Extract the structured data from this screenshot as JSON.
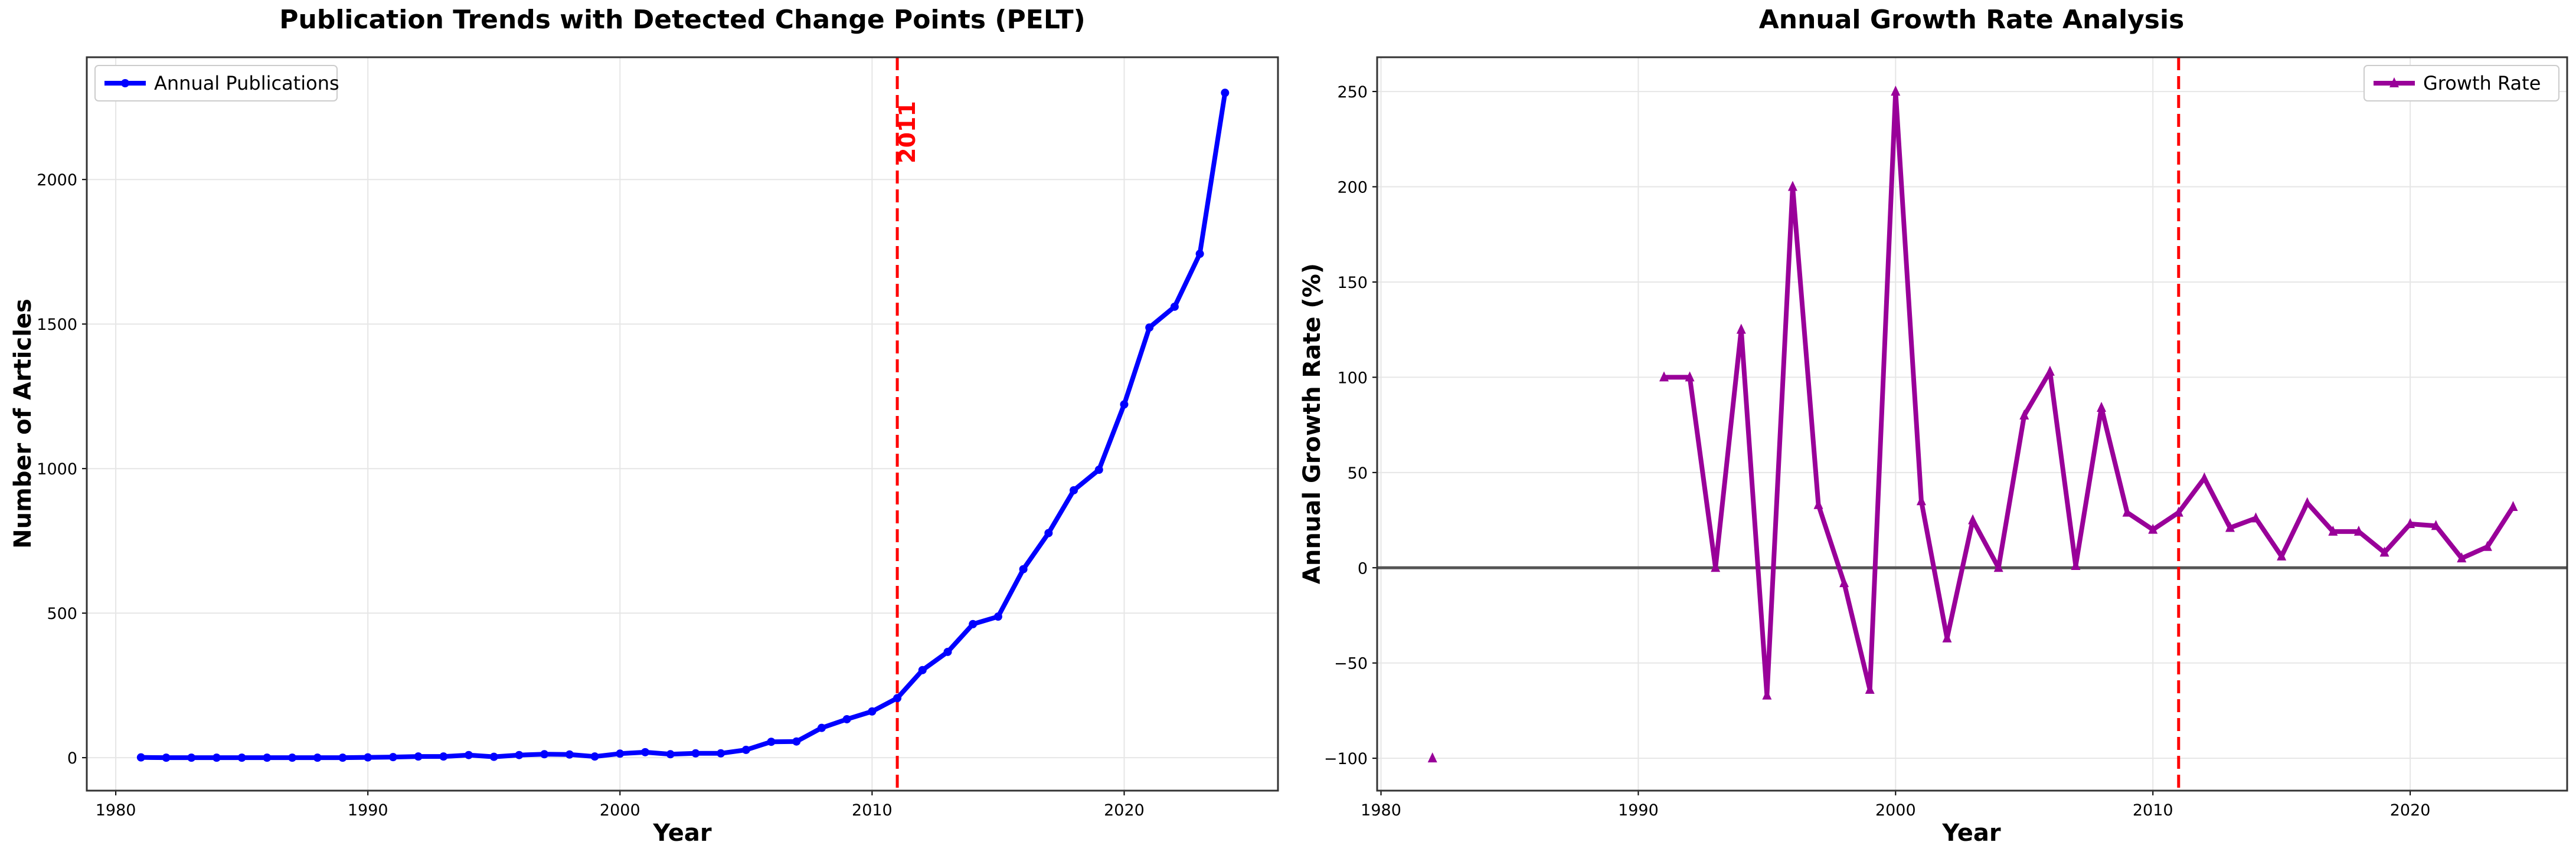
{
  "chart_data": [
    {
      "type": "line",
      "title": "Publication Trends with Detected Change Points (PELT)",
      "xlabel": "Year",
      "ylabel": "Number of Articles",
      "xlim": [
        1978.85,
        2026.1
      ],
      "ylim": [
        -114,
        2423
      ],
      "xticks": [
        1980,
        1990,
        2000,
        2010,
        2020
      ],
      "yticks": [
        0,
        500,
        1000,
        1500,
        2000
      ],
      "grid": true,
      "legend_position": "top-left",
      "series": [
        {
          "name": "Annual Publications",
          "color": "#0000ff",
          "marker": "circle",
          "x": [
            1981,
            1982,
            1983,
            1984,
            1985,
            1986,
            1987,
            1988,
            1989,
            1990,
            1991,
            1992,
            1993,
            1994,
            1995,
            1996,
            1997,
            1998,
            1999,
            2000,
            2001,
            2002,
            2003,
            2004,
            2005,
            2006,
            2007,
            2008,
            2009,
            2010,
            2011,
            2012,
            2013,
            2014,
            2015,
            2016,
            2017,
            2018,
            2019,
            2020,
            2021,
            2022,
            2023,
            2024
          ],
          "y": [
            1,
            0,
            0,
            0,
            0,
            0,
            0,
            0,
            0,
            1,
            2,
            4,
            4,
            9,
            3,
            9,
            12,
            11,
            4,
            14,
            19,
            12,
            15,
            15,
            27,
            55,
            56,
            103,
            133,
            160,
            206,
            303,
            366,
            462,
            488,
            652,
            777,
            925,
            996,
            1222,
            1488,
            1560,
            1743,
            2300
          ]
        }
      ],
      "vlines": [
        {
          "x": 2011,
          "label": "2011",
          "color": "#ff0000",
          "style": "dashed"
        }
      ]
    },
    {
      "type": "line",
      "title": "Annual Growth Rate Analysis",
      "xlabel": "Year",
      "ylabel": "Annual Growth Rate (%)",
      "xlim": [
        1979.85,
        2026.1
      ],
      "ylim": [
        -117,
        268
      ],
      "xticks": [
        1980,
        1990,
        2000,
        2010,
        2020
      ],
      "yticks": [
        -100,
        -50,
        0,
        50,
        100,
        150,
        200,
        250
      ],
      "grid": true,
      "legend_position": "top-right",
      "hlines": [
        {
          "y": 0,
          "color": "#555555"
        }
      ],
      "series": [
        {
          "name": "Growth Rate",
          "color": "#990099",
          "marker": "triangle",
          "x": [
            1982,
            1983,
            1984,
            1985,
            1986,
            1987,
            1988,
            1989,
            1990,
            1991,
            1992,
            1993,
            1994,
            1995,
            1996,
            1997,
            1998,
            1999,
            2000,
            2001,
            2002,
            2003,
            2004,
            2005,
            2006,
            2007,
            2008,
            2009,
            2010,
            2011,
            2012,
            2013,
            2014,
            2015,
            2016,
            2017,
            2018,
            2019,
            2020,
            2021,
            2022,
            2023,
            2024
          ],
          "y": [
            -100,
            null,
            null,
            null,
            null,
            null,
            null,
            null,
            null,
            100,
            100,
            0,
            125,
            -67,
            200,
            33,
            -8,
            -64,
            250,
            35,
            -37,
            25,
            0,
            80,
            103,
            1,
            84,
            29,
            20,
            29,
            47,
            21,
            26,
            6,
            34,
            19,
            19,
            8,
            23,
            22,
            5,
            11,
            32
          ]
        }
      ],
      "vlines": [
        {
          "x": 2011,
          "color": "#ff0000",
          "style": "dashed"
        }
      ]
    }
  ]
}
